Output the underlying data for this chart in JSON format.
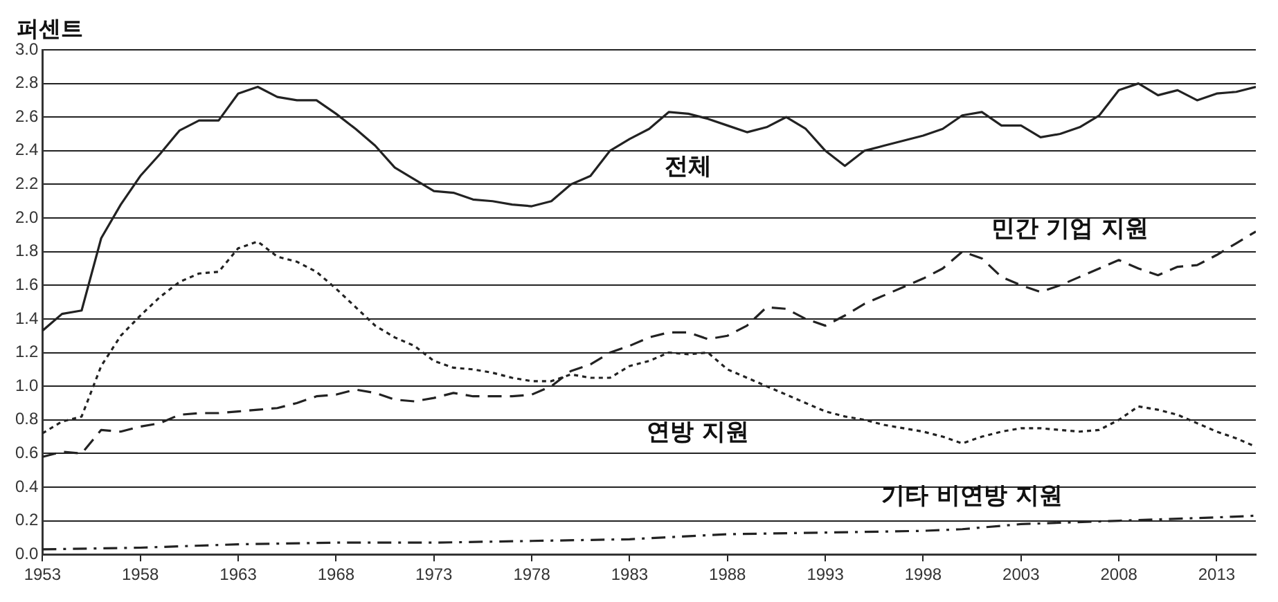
{
  "chart_data": {
    "type": "line",
    "ylabel": "퍼센트",
    "xlim": [
      1953,
      2015
    ],
    "xticks": [
      1953,
      1958,
      1963,
      1968,
      1973,
      1978,
      1983,
      1988,
      1993,
      1998,
      2003,
      2008,
      2013
    ],
    "ylim": [
      0,
      3.0
    ],
    "yticks": [
      {
        "value": 0,
        "label": "0.0"
      },
      0.2,
      0.4,
      0.6,
      0.8,
      {
        "value": 1,
        "label": "1.0"
      },
      1.2,
      1.4,
      1.6,
      1.8,
      {
        "value": 2,
        "label": "2.0"
      },
      2.2,
      2.4,
      2.6,
      2.8,
      {
        "value": 3,
        "label": "3.0"
      }
    ],
    "grid": "y",
    "legend": false,
    "marker": "none",
    "x": [
      1953,
      1954,
      1955,
      1956,
      1957,
      1958,
      1959,
      1960,
      1961,
      1962,
      1963,
      1964,
      1965,
      1966,
      1967,
      1968,
      1969,
      1970,
      1971,
      1972,
      1973,
      1974,
      1975,
      1976,
      1977,
      1978,
      1979,
      1980,
      1981,
      1982,
      1983,
      1984,
      1985,
      1986,
      1987,
      1988,
      1989,
      1990,
      1991,
      1992,
      1993,
      1994,
      1995,
      1996,
      1997,
      1998,
      1999,
      2000,
      2001,
      2002,
      2003,
      2004,
      2005,
      2006,
      2007,
      2008,
      2009,
      2010,
      2011,
      2012,
      2013,
      2014,
      2015
    ],
    "series": [
      {
        "name": "전체",
        "color": "#222222",
        "line_style": "solid",
        "values": [
          1.33,
          1.43,
          1.45,
          1.88,
          2.08,
          2.25,
          2.38,
          2.52,
          2.58,
          2.58,
          2.74,
          2.78,
          2.72,
          2.7,
          2.7,
          2.62,
          2.53,
          2.43,
          2.3,
          2.23,
          2.16,
          2.15,
          2.11,
          2.1,
          2.08,
          2.07,
          2.1,
          2.2,
          2.25,
          2.4,
          2.47,
          2.53,
          2.63,
          2.62,
          2.59,
          2.55,
          2.51,
          2.54,
          2.6,
          2.53,
          2.4,
          2.31,
          2.4,
          2.43,
          2.46,
          2.49,
          2.53,
          2.61,
          2.63,
          2.55,
          2.55,
          2.48,
          2.5,
          2.54,
          2.61,
          2.76,
          2.8,
          2.73,
          2.76,
          2.7,
          2.74,
          2.75,
          2.78
        ]
      },
      {
        "name": "민간 기업 지원",
        "color": "#222222",
        "line_style": "dashed",
        "values": [
          0.58,
          0.61,
          0.6,
          0.74,
          0.73,
          0.76,
          0.78,
          0.83,
          0.84,
          0.84,
          0.85,
          0.86,
          0.87,
          0.9,
          0.94,
          0.95,
          0.98,
          0.96,
          0.92,
          0.91,
          0.93,
          0.96,
          0.94,
          0.94,
          0.94,
          0.95,
          1.0,
          1.09,
          1.13,
          1.2,
          1.24,
          1.29,
          1.32,
          1.32,
          1.28,
          1.3,
          1.36,
          1.47,
          1.46,
          1.4,
          1.36,
          1.42,
          1.49,
          1.54,
          1.59,
          1.64,
          1.7,
          1.8,
          1.76,
          1.65,
          1.6,
          1.56,
          1.6,
          1.65,
          1.7,
          1.75,
          1.7,
          1.66,
          1.71,
          1.72,
          1.78,
          1.85,
          1.92
        ]
      },
      {
        "name": "연방 지원",
        "color": "#222222",
        "line_style": "dotted",
        "values": [
          0.72,
          0.79,
          0.82,
          1.12,
          1.3,
          1.42,
          1.53,
          1.62,
          1.67,
          1.68,
          1.82,
          1.86,
          1.77,
          1.74,
          1.68,
          1.58,
          1.47,
          1.36,
          1.29,
          1.24,
          1.15,
          1.11,
          1.1,
          1.08,
          1.05,
          1.03,
          1.03,
          1.07,
          1.05,
          1.05,
          1.12,
          1.15,
          1.2,
          1.19,
          1.2,
          1.1,
          1.05,
          1.0,
          0.95,
          0.9,
          0.85,
          0.82,
          0.8,
          0.77,
          0.75,
          0.73,
          0.7,
          0.66,
          0.7,
          0.73,
          0.75,
          0.75,
          0.74,
          0.73,
          0.74,
          0.8,
          0.88,
          0.86,
          0.83,
          0.78,
          0.73,
          0.69,
          0.64
        ]
      },
      {
        "name": "기타 비연방 지원",
        "color": "#222222",
        "line_style": "dashdot",
        "x": [
          1953,
          1958,
          1963,
          1968,
          1973,
          1978,
          1983,
          1988,
          1993,
          1998,
          2000,
          2003,
          2008,
          2013,
          2015
        ],
        "values": [
          0.03,
          0.04,
          0.06,
          0.07,
          0.07,
          0.08,
          0.09,
          0.12,
          0.13,
          0.14,
          0.15,
          0.18,
          0.2,
          0.22,
          0.23
        ]
      }
    ]
  }
}
